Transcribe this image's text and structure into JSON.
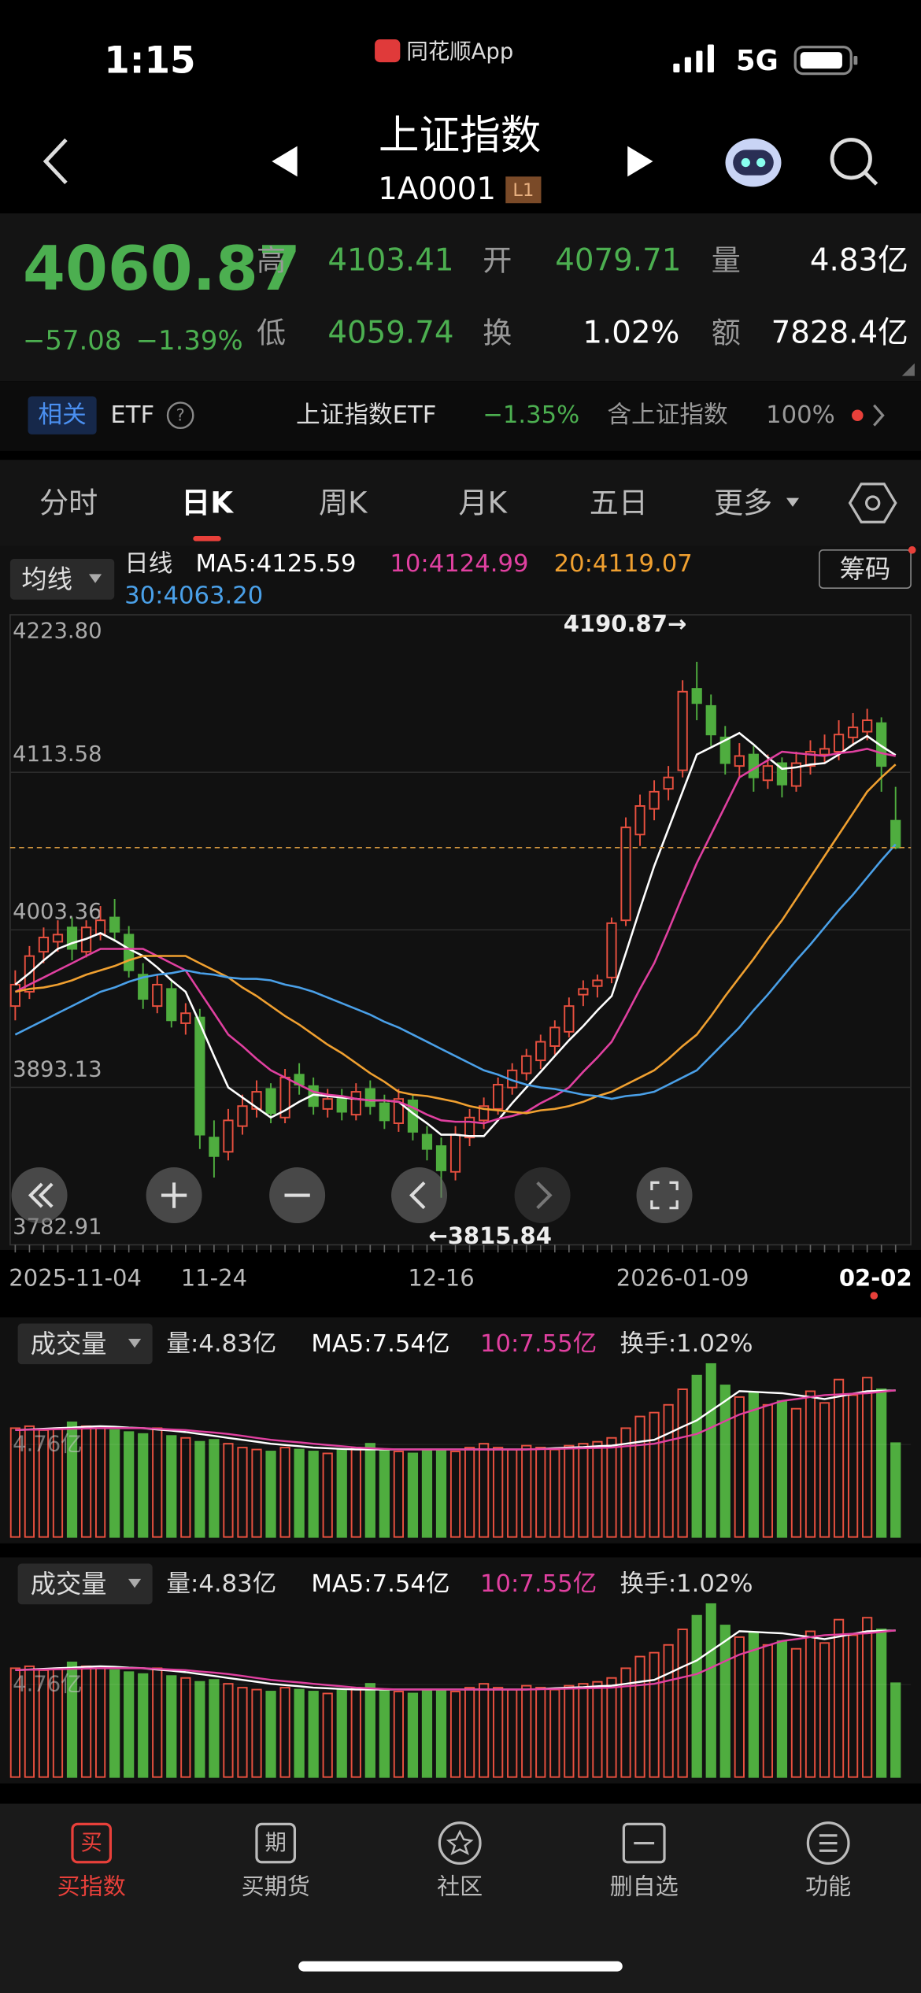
{
  "status": {
    "time": "1:15",
    "app": "同花顺App",
    "network": "5G"
  },
  "header": {
    "title": "上证指数",
    "code": "1A0001",
    "badge": "L1"
  },
  "quote": {
    "price": "4060.87",
    "change": "−57.08",
    "change_pct": "−1.39%",
    "stats": [
      {
        "label": "高",
        "value": "4103.41"
      },
      {
        "label": "开",
        "value": "4079.71"
      },
      {
        "label": "量",
        "value": "4.83亿"
      },
      {
        "label": "低",
        "value": "4059.74"
      },
      {
        "label": "换",
        "value": "1.02%"
      },
      {
        "label": "额",
        "value": "7828.4亿"
      }
    ]
  },
  "related": {
    "tag": "相关",
    "etf": "ETF",
    "help": "?",
    "name": "上证指数ETF",
    "change": "−1.35%",
    "holding": "含上证指数",
    "weight": "100%"
  },
  "tabs": [
    "分时",
    "日K",
    "周K",
    "月K",
    "五日",
    "更多"
  ],
  "chart_data": [
    {
      "type": "candlestick",
      "button": "均线",
      "legend_title": "日线",
      "chips": "筹码",
      "up_color": "#e8503f",
      "down_color": "#4fad3f",
      "high_label": "4190.87→",
      "low_label": "←3815.84",
      "ylim": [
        3782.91,
        4223.8
      ],
      "yticks": [
        {
          "value": 4223.8,
          "label": "4223.80"
        },
        {
          "value": 4113.58,
          "label": "4113.58"
        },
        {
          "value": 4003.36,
          "label": "4003.36"
        },
        {
          "value": 3893.13,
          "label": "3893.13"
        },
        {
          "value": 3782.91,
          "label": "3782.91"
        }
      ],
      "categories": [
        "2025-11-04",
        null,
        null,
        null,
        null,
        null,
        null,
        null,
        null,
        null,
        null,
        null,
        null,
        null,
        "11-24",
        null,
        null,
        null,
        null,
        null,
        null,
        null,
        null,
        null,
        null,
        null,
        null,
        null,
        null,
        null,
        "12-16",
        null,
        null,
        null,
        null,
        null,
        null,
        null,
        null,
        null,
        null,
        null,
        null,
        null,
        null,
        null,
        null,
        "2026-01-09",
        null,
        null,
        null,
        null,
        null,
        null,
        null,
        null,
        null,
        null,
        null,
        null,
        null,
        null,
        "02-02"
      ],
      "candles": [
        [
          3950,
          3975,
          3940,
          3965
        ],
        [
          3960,
          3992,
          3955,
          3985
        ],
        [
          3988,
          4005,
          3980,
          3998
        ],
        [
          3995,
          4010,
          3988,
          4000
        ],
        [
          4005,
          4012,
          3982,
          3990
        ],
        [
          3988,
          4010,
          3984,
          4005
        ],
        [
          4000,
          4020,
          3996,
          4010
        ],
        [
          4012,
          4025,
          3995,
          4002
        ],
        [
          4000,
          4006,
          3970,
          3975
        ],
        [
          3972,
          3980,
          3948,
          3955
        ],
        [
          3950,
          3972,
          3945,
          3965
        ],
        [
          3962,
          3968,
          3935,
          3940
        ],
        [
          3938,
          3952,
          3930,
          3945
        ],
        [
          3942,
          3948,
          3850,
          3860
        ],
        [
          3858,
          3870,
          3830,
          3845
        ],
        [
          3848,
          3878,
          3842,
          3870
        ],
        [
          3866,
          3888,
          3860,
          3880
        ],
        [
          3878,
          3898,
          3872,
          3890
        ],
        [
          3892,
          3896,
          3868,
          3875
        ],
        [
          3872,
          3906,
          3868,
          3900
        ],
        [
          3902,
          3910,
          3888,
          3895
        ],
        [
          3894,
          3900,
          3874,
          3880
        ],
        [
          3878,
          3892,
          3872,
          3885
        ],
        [
          3886,
          3892,
          3870,
          3876
        ],
        [
          3874,
          3896,
          3870,
          3890
        ],
        [
          3892,
          3898,
          3874,
          3880
        ],
        [
          3882,
          3888,
          3864,
          3870
        ],
        [
          3868,
          3892,
          3862,
          3885
        ],
        [
          3884,
          3888,
          3856,
          3862
        ],
        [
          3860,
          3866,
          3842,
          3850
        ],
        [
          3852,
          3858,
          3815.84,
          3835
        ],
        [
          3834,
          3866,
          3828,
          3860
        ],
        [
          3858,
          3878,
          3852,
          3872
        ],
        [
          3870,
          3886,
          3864,
          3880
        ],
        [
          3878,
          3900,
          3874,
          3895
        ],
        [
          3893,
          3910,
          3888,
          3905
        ],
        [
          3903,
          3920,
          3898,
          3915
        ],
        [
          3912,
          3930,
          3906,
          3925
        ],
        [
          3922,
          3940,
          3916,
          3935
        ],
        [
          3932,
          3956,
          3928,
          3950
        ],
        [
          3958,
          3968,
          3950,
          3962
        ],
        [
          3964,
          3972,
          3956,
          3968
        ],
        [
          3970,
          4012,
          3966,
          4008
        ],
        [
          4010,
          4082,
          4006,
          4075
        ],
        [
          4070,
          4098,
          4062,
          4090
        ],
        [
          4088,
          4108,
          4080,
          4100
        ],
        [
          4102,
          4118,
          4094,
          4110
        ],
        [
          4115,
          4178,
          4110,
          4170
        ],
        [
          4172,
          4190.87,
          4150,
          4162
        ],
        [
          4160,
          4168,
          4132,
          4140
        ],
        [
          4138,
          4146,
          4112,
          4120
        ],
        [
          4118,
          4134,
          4110,
          4125
        ],
        [
          4126,
          4132,
          4100,
          4110
        ],
        [
          4108,
          4126,
          4102,
          4118
        ],
        [
          4120,
          4124,
          4096,
          4105
        ],
        [
          4104,
          4128,
          4100,
          4120
        ],
        [
          4118,
          4136,
          4112,
          4128
        ],
        [
          4126,
          4140,
          4120,
          4130
        ],
        [
          4128,
          4150,
          4122,
          4140
        ],
        [
          4138,
          4155,
          4132,
          4145
        ],
        [
          4142,
          4158,
          4136,
          4150
        ],
        [
          4148,
          4152,
          4100,
          4118
        ],
        [
          4079.71,
          4103.41,
          4059.74,
          4060.87
        ]
      ],
      "series": [
        {
          "name": "MA5:4125.59",
          "color": "#ffffff",
          "values": [
            3965,
            3973,
            3982,
            3990,
            3994,
            3997,
            4001,
            3996,
            3990,
            3985,
            3977,
            3968,
            3960,
            3938,
            3915,
            3893,
            3886,
            3879,
            3872,
            3877,
            3883,
            3888,
            3887,
            3886,
            3885,
            3884,
            3884,
            3883,
            3875,
            3868,
            3860,
            3860,
            3859,
            3859,
            3870,
            3882,
            3893,
            3904,
            3915,
            3926,
            3936,
            3947,
            3957,
            3987,
            4018,
            4048,
            4074,
            4100,
            4126,
            4131,
            4136,
            4141,
            4133,
            4124,
            4116,
            4117,
            4119,
            4120,
            4126,
            4133,
            4139,
            4132,
            4125.59
          ]
        },
        {
          "name": "10:4124.99",
          "color": "#e040a0",
          "values": [
            3960,
            3965,
            3970,
            3975,
            3980,
            3985,
            3990,
            3990,
            3990,
            3990,
            3985,
            3980,
            3975,
            3960,
            3945,
            3930,
            3922,
            3913,
            3905,
            3900,
            3895,
            3890,
            3888,
            3887,
            3885,
            3884,
            3884,
            3883,
            3879,
            3874,
            3870,
            3869,
            3869,
            3868,
            3871,
            3873,
            3876,
            3882,
            3887,
            3893,
            3904,
            3914,
            3925,
            3943,
            3962,
            3980,
            4003,
            4027,
            4050,
            4070,
            4090,
            4110,
            4116,
            4122,
            4128,
            4127,
            4126,
            4125,
            4127,
            4128,
            4130,
            4127,
            4124.99
          ]
        },
        {
          "name": "20:4119.07",
          "color": "#f0a030",
          "values": [
            3960,
            3962,
            3963,
            3965,
            3968,
            3972,
            3975,
            3978,
            3982,
            3985,
            3985,
            3985,
            3985,
            3980,
            3975,
            3970,
            3963,
            3957,
            3950,
            3943,
            3937,
            3930,
            3923,
            3917,
            3910,
            3903,
            3897,
            3890,
            3888,
            3887,
            3885,
            3883,
            3880,
            3878,
            3877,
            3876,
            3875,
            3877,
            3878,
            3880,
            3883,
            3887,
            3890,
            3895,
            3900,
            3905,
            3913,
            3922,
            3930,
            3943,
            3957,
            3970,
            3983,
            3997,
            4010,
            4025,
            4040,
            4055,
            4070,
            4085,
            4100,
            4110,
            4119.07
          ]
        },
        {
          "name": "30:4063.20",
          "color": "#4aa0e8",
          "values": [
            3930,
            3935,
            3940,
            3945,
            3950,
            3955,
            3960,
            3963,
            3967,
            3970,
            3972,
            3973,
            3975,
            3973,
            3972,
            3970,
            3969,
            3969,
            3968,
            3965,
            3963,
            3960,
            3956,
            3952,
            3948,
            3944,
            3939,
            3935,
            3930,
            3925,
            3920,
            3915,
            3910,
            3905,
            3902,
            3898,
            3895,
            3893,
            3892,
            3890,
            3888,
            3887,
            3885,
            3887,
            3888,
            3890,
            3895,
            3900,
            3905,
            3915,
            3925,
            3935,
            3947,
            3958,
            3970,
            3982,
            3993,
            4005,
            4017,
            4028,
            4040,
            4052,
            4063.2
          ]
        }
      ]
    },
    {
      "type": "bar",
      "button": "成交量",
      "volume_label": "量:4.83亿",
      "turnover_label": "换手:1.02%",
      "ylim": [
        0,
        9.15
      ],
      "yticks": [
        {
          "value": 4.76,
          "label": "4.76亿"
        }
      ],
      "values": [
        5.6,
        5.7,
        5.5,
        5.6,
        5.9,
        5.7,
        5.6,
        5.5,
        5.4,
        5.3,
        5.6,
        5.2,
        5.1,
        4.9,
        5.0,
        4.8,
        4.6,
        4.5,
        4.4,
        4.6,
        4.5,
        4.4,
        4.3,
        4.5,
        4.6,
        4.8,
        4.5,
        4.4,
        4.3,
        4.5,
        4.5,
        4.4,
        4.6,
        4.8,
        4.6,
        4.5,
        4.7,
        4.6,
        4.5,
        4.7,
        4.8,
        4.9,
        5.1,
        5.6,
        6.2,
        6.4,
        6.8,
        7.6,
        8.3,
        8.9,
        7.8,
        7.2,
        7.4,
        6.8,
        7.0,
        6.6,
        7.5,
        6.9,
        8.1,
        7.3,
        8.2,
        7.6,
        4.83
      ],
      "series": [
        {
          "name": "MA5:7.54亿",
          "color": "#ffffff",
          "values": [
            5.5,
            5.53,
            5.57,
            5.6,
            5.63,
            5.67,
            5.7,
            5.67,
            5.63,
            5.6,
            5.53,
            5.47,
            5.4,
            5.3,
            5.2,
            5.1,
            5.0,
            4.9,
            4.8,
            4.73,
            4.67,
            4.6,
            4.57,
            4.53,
            4.5,
            4.5,
            4.5,
            4.5,
            4.5,
            4.5,
            4.5,
            4.5,
            4.5,
            4.5,
            4.5,
            4.5,
            4.5,
            4.53,
            4.57,
            4.6,
            4.63,
            4.67,
            4.7,
            4.8,
            4.9,
            5.0,
            5.33,
            5.67,
            6.0,
            6.5,
            7.0,
            7.5,
            7.47,
            7.43,
            7.4,
            7.3,
            7.2,
            7.1,
            7.23,
            7.37,
            7.5,
            7.52,
            7.54
          ]
        },
        {
          "name": "10:7.55亿",
          "color": "#e040a0",
          "values": [
            5.5,
            5.52,
            5.53,
            5.55,
            5.57,
            5.58,
            5.6,
            5.6,
            5.6,
            5.6,
            5.57,
            5.53,
            5.5,
            5.43,
            5.37,
            5.3,
            5.2,
            5.1,
            5.0,
            4.93,
            4.87,
            4.8,
            4.73,
            4.67,
            4.6,
            4.57,
            4.53,
            4.5,
            4.5,
            4.5,
            4.5,
            4.5,
            4.5,
            4.5,
            4.5,
            4.5,
            4.5,
            4.52,
            4.53,
            4.55,
            4.57,
            4.58,
            4.6,
            4.67,
            4.73,
            4.8,
            4.97,
            5.13,
            5.3,
            5.63,
            5.97,
            6.3,
            6.53,
            6.77,
            7.0,
            7.1,
            7.2,
            7.3,
            7.33,
            7.37,
            7.4,
            7.47,
            7.55
          ]
        }
      ]
    }
  ],
  "nav": [
    {
      "icon": "买",
      "label": "买指数"
    },
    {
      "icon": "期",
      "label": "买期货"
    },
    {
      "label": "社区"
    },
    {
      "label": "删自选"
    },
    {
      "label": "功能"
    }
  ]
}
